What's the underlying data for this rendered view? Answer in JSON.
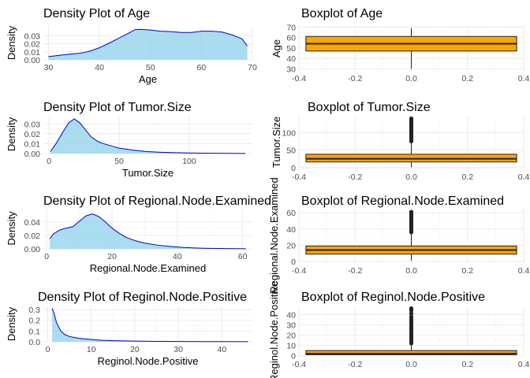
{
  "chart_data": [
    {
      "type": "area",
      "kind": "density",
      "title": "Density Plot of Age",
      "xlabel": "Age",
      "ylabel": "Density",
      "xlim": [
        29,
        70
      ],
      "ylim": [
        0,
        0.042
      ],
      "xticks": [
        30,
        40,
        50,
        60,
        70
      ],
      "yticks": [
        0.0,
        0.01,
        0.02,
        0.03
      ],
      "ytick_labels": [
        "0.00",
        "0.01",
        "0.02",
        "0.03"
      ],
      "fill": "#87ceeb",
      "line": "#0000cd",
      "x": [
        30,
        32,
        34,
        36,
        38,
        40,
        42,
        44,
        46,
        47,
        48,
        50,
        52,
        54,
        56,
        58,
        60,
        62,
        64,
        66,
        68,
        69
      ],
      "y": [
        0.004,
        0.0055,
        0.007,
        0.008,
        0.0105,
        0.015,
        0.021,
        0.0275,
        0.034,
        0.0375,
        0.0378,
        0.037,
        0.0355,
        0.035,
        0.034,
        0.034,
        0.0355,
        0.0355,
        0.0345,
        0.031,
        0.026,
        0.017
      ]
    },
    {
      "type": "boxplot",
      "title": "Boxplot of Age",
      "ylabel": "Age",
      "xlim": [
        -0.4,
        0.4
      ],
      "ylim": [
        28,
        71
      ],
      "xticks": [
        -0.4,
        -0.2,
        0.0,
        0.2,
        0.4
      ],
      "xtick_labels": [
        "-0.4",
        "-0.2",
        "0.0",
        "0.2",
        "0.4"
      ],
      "yticks": [
        30,
        40,
        50,
        60,
        70
      ],
      "box_halfwidth": 0.375,
      "stats": {
        "min": 30,
        "q1": 47,
        "median": 54,
        "q3": 61,
        "max": 69
      },
      "outliers": [],
      "fill": "#ffa500"
    },
    {
      "type": "area",
      "kind": "density",
      "title": "Density Plot of Tumor.Size",
      "xlabel": "Tumor.Size",
      "ylabel": "Density",
      "xlim": [
        -4,
        145
      ],
      "ylim": [
        0,
        0.039
      ],
      "xticks": [
        0,
        50,
        100
      ],
      "yticks": [
        0.0,
        0.01,
        0.02,
        0.03
      ],
      "ytick_labels": [
        "0.00",
        "0.01",
        "0.02",
        "0.03"
      ],
      "fill": "#87ceeb",
      "line": "#0000cd",
      "x": [
        1,
        5,
        10,
        14,
        18,
        22,
        26,
        30,
        35,
        40,
        45,
        50,
        60,
        70,
        80,
        90,
        100,
        110,
        120,
        130,
        140
      ],
      "y": [
        0.002,
        0.01,
        0.022,
        0.031,
        0.035,
        0.031,
        0.024,
        0.017,
        0.012,
        0.0095,
        0.0075,
        0.0055,
        0.0035,
        0.002,
        0.0013,
        0.0009,
        0.0006,
        0.0004,
        0.0003,
        0.0002,
        0.0001
      ]
    },
    {
      "type": "boxplot",
      "title": "Boxplot of Tumor.Size",
      "ylabel": "Tumor.Size",
      "xlim": [
        -0.4,
        0.4
      ],
      "ylim": [
        -5,
        150
      ],
      "xticks": [
        -0.4,
        -0.2,
        0.0,
        0.2,
        0.4
      ],
      "xtick_labels": [
        "-0.4",
        "-0.2",
        "0.0",
        "0.2",
        "0.4"
      ],
      "yticks": [
        0,
        50,
        100
      ],
      "box_halfwidth": 0.375,
      "stats": {
        "min": 1,
        "q1": 16,
        "median": 25,
        "q3": 38,
        "max": 71
      },
      "outliers": [
        75,
        80,
        85,
        90,
        95,
        100,
        105,
        110,
        115,
        120,
        125,
        130,
        135,
        140
      ],
      "fill": "#ffa500"
    },
    {
      "type": "area",
      "kind": "density",
      "title": "Density Plot of Regional.Node.Examined",
      "xlabel": "Regional.Node.Examined",
      "ylabel": "Density",
      "xlim": [
        -1,
        63
      ],
      "ylim": [
        0,
        0.061
      ],
      "xticks": [
        0,
        20,
        40,
        60
      ],
      "yticks": [
        0.0,
        0.02,
        0.04
      ],
      "ytick_labels": [
        "0.00",
        "0.02",
        "0.04"
      ],
      "fill": "#87ceeb",
      "line": "#0000cd",
      "x": [
        1,
        2,
        4,
        6,
        8,
        10,
        12,
        14,
        16,
        18,
        20,
        22,
        24,
        26,
        28,
        30,
        34,
        38,
        42,
        46,
        50,
        55,
        61
      ],
      "y": [
        0.015,
        0.022,
        0.028,
        0.031,
        0.033,
        0.041,
        0.049,
        0.052,
        0.048,
        0.04,
        0.031,
        0.024,
        0.018,
        0.014,
        0.011,
        0.0085,
        0.0055,
        0.0035,
        0.002,
        0.0012,
        0.0007,
        0.0004,
        0.0002
      ]
    },
    {
      "type": "boxplot",
      "title": "Boxplot of Regional.Node.Examined",
      "ylabel": "Regional.Node.Examined",
      "xlim": [
        -0.4,
        0.4
      ],
      "ylim": [
        -2,
        66
      ],
      "xticks": [
        -0.4,
        -0.2,
        0.0,
        0.2,
        0.4
      ],
      "xtick_labels": [
        "-0.4",
        "-0.2",
        "0.0",
        "0.2",
        "0.4"
      ],
      "yticks": [
        0,
        20,
        40,
        60
      ],
      "box_halfwidth": 0.375,
      "stats": {
        "min": 1,
        "q1": 9,
        "median": 14,
        "q3": 19,
        "max": 34
      },
      "outliers": [
        36,
        38,
        40,
        42,
        44,
        46,
        48,
        50,
        52,
        54,
        56,
        58,
        60,
        61
      ],
      "fill": "#ffa500"
    },
    {
      "type": "area",
      "kind": "density",
      "title": "Density Plot of Reginol.Node.Positive",
      "xlabel": "Reginol.Node.Positive",
      "ylabel": "Density",
      "xlim": [
        -1,
        47
      ],
      "ylim": [
        0,
        0.33
      ],
      "xticks": [
        0,
        10,
        20,
        30,
        40
      ],
      "yticks": [
        0.0,
        0.1,
        0.2,
        0.3
      ],
      "ytick_labels": [
        "0.0",
        "0.1",
        "0.2",
        "0.3"
      ],
      "fill": "#87ceeb",
      "line": "#0000cd",
      "x": [
        1,
        1.5,
        2,
        3,
        4,
        5,
        6,
        8,
        10,
        12,
        15,
        20,
        25,
        30,
        35,
        40,
        46
      ],
      "y": [
        0.31,
        0.26,
        0.18,
        0.1,
        0.065,
        0.05,
        0.04,
        0.028,
        0.022,
        0.015,
        0.01,
        0.006,
        0.004,
        0.003,
        0.002,
        0.0015,
        0.001
      ]
    },
    {
      "type": "boxplot",
      "title": "Boxplot of Reginol.Node.Positive",
      "ylabel": "Reginol.Node.Positive",
      "xlim": [
        -0.4,
        0.4
      ],
      "ylim": [
        -1,
        48
      ],
      "xticks": [
        -0.4,
        -0.2,
        0.0,
        0.2,
        0.4
      ],
      "xtick_labels": [
        "-0.4",
        "-0.2",
        "0.0",
        "0.2",
        "0.4"
      ],
      "yticks": [
        0,
        10,
        20,
        30,
        40
      ],
      "box_halfwidth": 0.375,
      "stats": {
        "min": 1,
        "q1": 1,
        "median": 2,
        "q3": 5,
        "max": 11
      },
      "outliers": [
        12,
        14,
        16,
        18,
        20,
        22,
        24,
        26,
        28,
        30,
        32,
        34,
        36,
        38,
        41,
        44,
        46
      ],
      "fill": "#ffa500"
    }
  ]
}
